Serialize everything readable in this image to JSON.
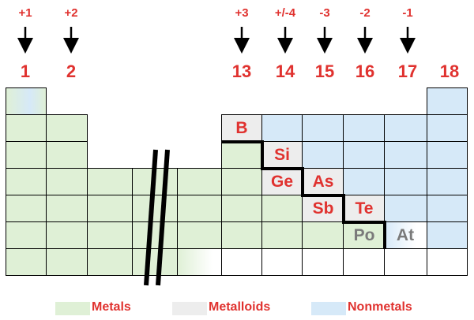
{
  "charges": [
    "+1",
    "+2",
    "+3",
    "+/-4",
    "-3",
    "-2",
    "-1"
  ],
  "groups": [
    "1",
    "2",
    "13",
    "14",
    "15",
    "16",
    "17",
    "18"
  ],
  "elements": {
    "B": "B",
    "Si": "Si",
    "Ge": "Ge",
    "As": "As",
    "Sb": "Sb",
    "Te": "Te",
    "Po": "Po",
    "At": "At"
  },
  "legend": {
    "metals": "Metals",
    "metalloids": "Metalloids",
    "nonmetals": "Nonmetals"
  },
  "colors": {
    "metal": "#dff0d6",
    "metalloid": "#ededed",
    "nonmetal": "#d6e9f8",
    "label_red": "#e0322f",
    "label_grey": "#7a7a7a"
  }
}
